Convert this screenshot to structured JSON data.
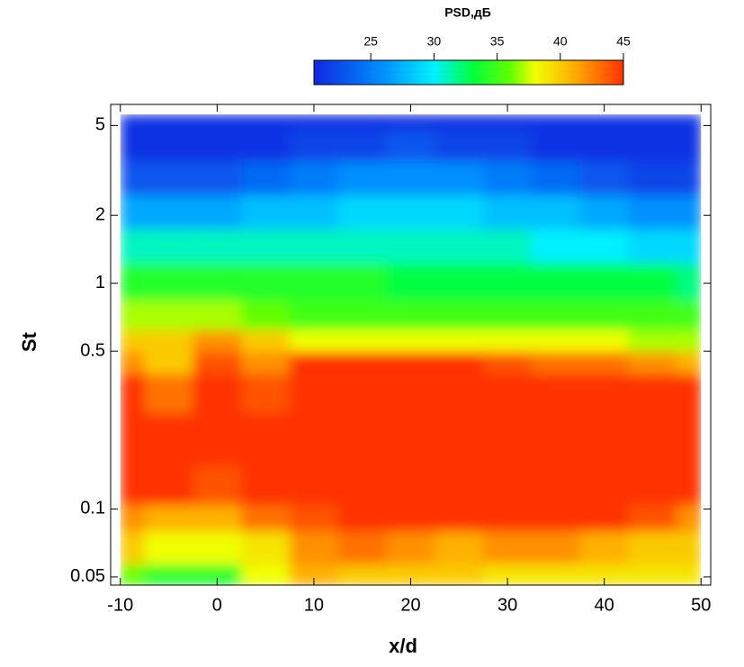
{
  "chart_data": {
    "type": "heatmap",
    "x_label": "x/d",
    "y_label": "St",
    "x": [
      -10,
      -5,
      0,
      5,
      10,
      15,
      20,
      25,
      30,
      35,
      40,
      45,
      50
    ],
    "y": [
      5.6,
      4,
      3,
      2,
      1.5,
      1,
      0.7,
      0.55,
      0.45,
      0.35,
      0.2,
      0.12,
      0.09,
      0.07,
      0.046
    ],
    "z": [
      [
        21,
        21,
        21,
        21,
        21,
        21,
        21,
        21,
        21,
        21,
        21,
        21,
        21
      ],
      [
        21,
        21,
        21,
        21,
        22,
        22,
        23,
        22,
        22,
        21,
        21,
        21,
        21
      ],
      [
        23,
        23,
        23,
        24,
        25,
        26,
        26,
        26,
        25,
        24,
        23,
        22,
        22
      ],
      [
        27,
        27,
        27,
        28,
        28,
        29,
        29,
        29,
        28,
        28,
        27,
        26,
        26
      ],
      [
        31,
        31,
        31,
        31,
        31,
        31,
        31,
        31,
        31,
        30,
        30,
        29,
        29
      ],
      [
        34,
        34,
        34,
        34,
        34,
        34,
        33,
        33,
        33,
        33,
        33,
        33,
        32
      ],
      [
        37,
        37,
        37,
        36,
        35,
        35,
        35,
        35,
        35,
        35,
        35,
        35,
        35
      ],
      [
        40,
        40,
        42,
        40,
        38,
        38,
        38,
        38,
        38,
        38,
        38,
        37,
        37
      ],
      [
        42,
        40,
        44,
        42,
        45,
        45,
        45,
        45,
        44,
        43,
        43,
        42,
        41
      ],
      [
        45,
        43,
        45,
        44,
        45,
        45,
        45,
        45,
        45,
        45,
        45,
        45,
        45
      ],
      [
        45,
        45,
        45,
        45,
        45,
        45,
        45,
        45,
        45,
        45,
        45,
        45,
        45
      ],
      [
        45,
        45,
        44,
        45,
        45,
        45,
        45,
        45,
        45,
        45,
        45,
        45,
        45
      ],
      [
        42,
        41,
        41,
        43,
        44,
        45,
        45,
        45,
        45,
        45,
        45,
        44,
        42
      ],
      [
        40,
        38,
        38,
        39,
        42,
        43,
        42,
        41,
        42,
        42,
        41,
        40,
        40
      ],
      [
        36,
        34,
        34,
        38,
        41,
        40,
        40,
        40,
        39,
        39,
        39,
        39,
        39
      ]
    ],
    "xlim": [
      -11,
      51
    ],
    "xticks": [
      -10,
      0,
      10,
      20,
      30,
      40,
      50
    ],
    "ylim": [
      0.046,
      6.2
    ],
    "yscale": "log",
    "yticks": [
      0.05,
      0.1,
      0.5,
      1,
      2,
      5
    ],
    "colorbar": {
      "title": "PSD,дБ",
      "lim": [
        20.5,
        45
      ],
      "ticks": [
        25,
        30,
        35,
        40,
        45
      ]
    },
    "colormap": [
      {
        "value": 20.5,
        "color": "#1028e0"
      },
      {
        "value": 26,
        "color": "#0090ff"
      },
      {
        "value": 30,
        "color": "#00f0ff"
      },
      {
        "value": 33,
        "color": "#00ff40"
      },
      {
        "value": 36,
        "color": "#60ff00"
      },
      {
        "value": 38,
        "color": "#f0ff00"
      },
      {
        "value": 41,
        "color": "#ffb000"
      },
      {
        "value": 45,
        "color": "#ff3300"
      }
    ]
  }
}
